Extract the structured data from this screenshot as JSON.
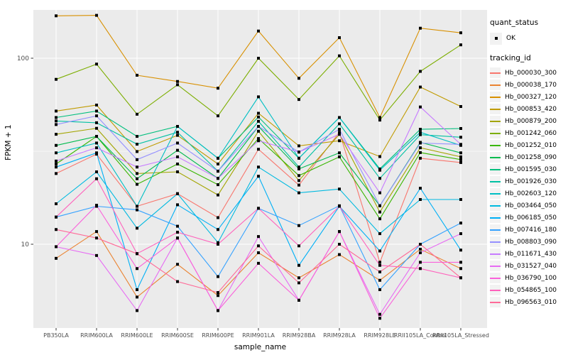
{
  "figure": {
    "background": "#FFFFFF",
    "panel_background": "#EBEBEB",
    "gridline_color": "#FFFFFF",
    "tick_color": "#333333",
    "tick_label_color": "#4D4D4D",
    "axis_title_color": "#000000",
    "point_color": "#000000",
    "legend_key_fill": "#F2F2F2"
  },
  "axes": {
    "x_title": "sample_name",
    "y_title": "FPKM + 1",
    "y_tick_labels": [
      "100",
      "10"
    ],
    "y_scale": "log10"
  },
  "legend": {
    "quant_status": {
      "title": "quant_status",
      "items": [
        {
          "label": "OK",
          "marker": "black-point"
        }
      ]
    },
    "tracking_id": {
      "title": "tracking_id"
    }
  },
  "chart_data": {
    "type": "line",
    "title": "",
    "xlabel": "sample_name",
    "ylabel": "FPKM + 1",
    "grid": true,
    "legend_position": "right",
    "y_axis": {
      "scale": "log10",
      "ticks": [
        10,
        100
      ],
      "minor_ticks": [
        31.6
      ],
      "range_approx": [
        3.9,
        250
      ]
    },
    "x_categories": [
      "PB350LA",
      "RRIM600LA",
      "RRIM600LE",
      "RRIM600SE",
      "RRIM600PE",
      "RRIM901LA",
      "RRIM928BA",
      "RRIM928LA",
      "RRIM928LE",
      "RRII105LA_Control",
      "RRII105LA_Stressed"
    ],
    "series": [
      {
        "name": "Hb_000030_300",
        "color": "#F8766D",
        "values": [
          24,
          30.5,
          16,
          18.7,
          13.9,
          32.4,
          20.8,
          40,
          8,
          29,
          27.5
        ]
      },
      {
        "name": "Hb_000038_170",
        "color": "#EA8331",
        "values": [
          8.4,
          11.7,
          5.2,
          7.8,
          5.3,
          9,
          6.6,
          8.8,
          6.4,
          9.4,
          7.4
        ]
      },
      {
        "name": "Hb_000327_120",
        "color": "#D89000",
        "values": [
          169,
          170,
          81,
          75,
          69,
          140,
          78,
          129,
          48,
          145,
          137
        ]
      },
      {
        "name": "Hb_000853_420",
        "color": "#C09B00",
        "values": [
          52,
          56,
          31.5,
          38.5,
          27,
          50.6,
          33.8,
          36,
          29.6,
          70,
          55
        ]
      },
      {
        "name": "Hb_000879_200",
        "color": "#A3A500",
        "values": [
          39,
          42,
          24,
          24.5,
          18.4,
          40.5,
          22,
          39,
          14.9,
          33,
          29.5
        ]
      },
      {
        "name": "Hb_001242_060",
        "color": "#7CAE00",
        "values": [
          77,
          93,
          50,
          72,
          49,
          100,
          60,
          103,
          46.5,
          85,
          118
        ]
      },
      {
        "name": "Hb_001252_010",
        "color": "#39B600",
        "values": [
          27,
          38,
          21,
          27,
          20.9,
          37,
          23.4,
          29.5,
          13.7,
          31.1,
          28.5
        ]
      },
      {
        "name": "Hb_001258_090",
        "color": "#00BB4E",
        "values": [
          34,
          38,
          22.5,
          32,
          22.6,
          43,
          25.4,
          31,
          16.1,
          35.3,
          31
        ]
      },
      {
        "name": "Hb_001595_030",
        "color": "#00BF7D",
        "values": [
          48,
          52,
          38,
          43,
          29,
          48.3,
          29,
          48,
          25.4,
          41.5,
          41.9
        ]
      },
      {
        "name": "Hb_001926_030",
        "color": "#00C1A3",
        "values": [
          46,
          45,
          34.5,
          40,
          24.7,
          45.8,
          26,
          44.4,
          22.6,
          38.8,
          37.6
        ]
      },
      {
        "name": "Hb_002603_120",
        "color": "#00BFC4",
        "values": [
          31,
          35,
          16,
          43,
          29,
          62,
          29,
          48,
          25,
          40,
          34
        ]
      },
      {
        "name": "Hb_003464_050",
        "color": "#00BAE0",
        "values": [
          16.5,
          24.5,
          12.2,
          18.7,
          10.2,
          26,
          18.9,
          19.8,
          11.4,
          17.4,
          17.4
        ]
      },
      {
        "name": "Hb_006185_050",
        "color": "#00B0F6",
        "values": [
          26,
          31,
          5.7,
          16.3,
          12,
          23.2,
          7.7,
          16,
          9.2,
          20,
          9.3
        ]
      },
      {
        "name": "Hb_007416_180",
        "color": "#35A2FF",
        "values": [
          14,
          16,
          15.3,
          12.5,
          6.7,
          15.6,
          12.6,
          16.1,
          5.7,
          10,
          13
        ]
      },
      {
        "name": "Hb_008803_090",
        "color": "#9590FF",
        "values": [
          44,
          49,
          28.5,
          35,
          24.7,
          43,
          31.3,
          41.5,
          16.1,
          35,
          34.4
        ]
      },
      {
        "name": "Hb_011671_430",
        "color": "#C77CFF",
        "values": [
          28,
          33,
          26,
          29.5,
          22.6,
          36,
          31.3,
          39,
          18.9,
          54.7,
          34.4
        ]
      },
      {
        "name": "Hb_031527_040",
        "color": "#E76BF3",
        "values": [
          9.7,
          8.7,
          4.4,
          10.8,
          4.4,
          11,
          5.0,
          11.7,
          4.2,
          9,
          11.4
        ]
      },
      {
        "name": "Hb_036790_100",
        "color": "#FA62DB",
        "values": [
          9.7,
          16.2,
          7.4,
          10.8,
          4.4,
          7.9,
          5.0,
          11.7,
          4.0,
          8,
          8
        ]
      },
      {
        "name": "Hb_054865_100",
        "color": "#FF62BC",
        "values": [
          14,
          22.5,
          8.9,
          11.6,
          10,
          15.6,
          9.8,
          16,
          7.7,
          7.4,
          6.6
        ]
      },
      {
        "name": "Hb_096563_010",
        "color": "#FF6A98",
        "values": [
          12,
          10.8,
          8.9,
          6.3,
          5.5,
          9.8,
          6.2,
          10,
          7.1,
          10,
          6.6
        ]
      }
    ]
  }
}
